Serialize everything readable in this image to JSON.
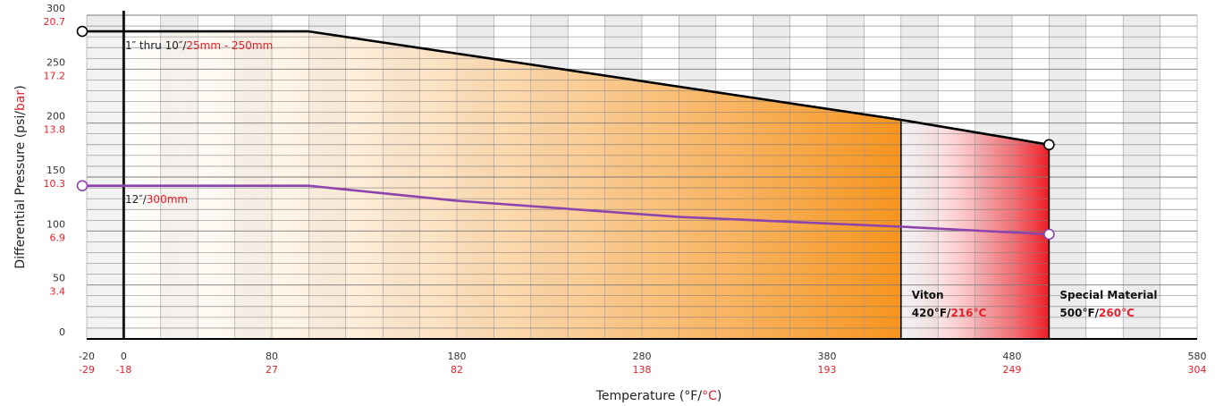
{
  "chart_data": {
    "type": "line",
    "x_axis": {
      "label_prefix": "Temperature (°F/",
      "label_suffix": "°C",
      "label_close": ")",
      "range_f": [
        -20,
        580
      ],
      "ticks": [
        {
          "f": "-20",
          "c": "-29"
        },
        {
          "f": "0",
          "c": "-18"
        },
        {
          "f": "80",
          "c": "27"
        },
        {
          "f": "180",
          "c": "82"
        },
        {
          "f": "280",
          "c": "138"
        },
        {
          "f": "380",
          "c": "193"
        },
        {
          "f": "480",
          "c": "249"
        },
        {
          "f": "580",
          "c": "304"
        }
      ]
    },
    "y_axis": {
      "label_prefix": "Differential Pressure (psi/",
      "label_suffix": "bar",
      "label_close": ")",
      "range_psi": [
        0,
        300
      ],
      "ticks": [
        {
          "psi": "0",
          "bar": ""
        },
        {
          "psi": "50",
          "bar": "3.4"
        },
        {
          "psi": "100",
          "bar": "6.9"
        },
        {
          "psi": "150",
          "bar": "10.3"
        },
        {
          "psi": "200",
          "bar": "13.8"
        },
        {
          "psi": "250",
          "bar": "17.2"
        },
        {
          "psi": "300",
          "bar": "20.7"
        }
      ]
    },
    "grid": true,
    "series": [
      {
        "name_black": "1″ thru 10″/",
        "name_red": "25mm - 250mm",
        "color": "#000000",
        "x": [
          -20,
          100,
          420,
          500
        ],
        "y": [
          285,
          285,
          203,
          180
        ]
      },
      {
        "name_black": "12″/",
        "name_red": "300mm",
        "color": "#8e44ad",
        "x": [
          -20,
          100,
          180,
          300,
          420,
          500
        ],
        "y": [
          142,
          142,
          128,
          113,
          104,
          97
        ]
      }
    ],
    "regions": [
      {
        "x_from": -20,
        "x_to": 420,
        "gradient": [
          "#ffffff",
          "#f7941d"
        ]
      },
      {
        "x_from": 420,
        "x_to": 500,
        "gradient": [
          "#ffffff",
          "#ed1c24"
        ]
      }
    ],
    "annotations": [
      {
        "title": "Viton",
        "value_black": "420°F/",
        "value_red": "216°C",
        "x": 420
      },
      {
        "title": "Special Material",
        "value_black": "500°F/",
        "value_red": "260°C",
        "x": 500
      }
    ],
    "colors": {
      "accent_red": "#e8202a",
      "purple": "#8e44ad",
      "orange": "#f7941d",
      "red": "#ed1c24"
    }
  }
}
